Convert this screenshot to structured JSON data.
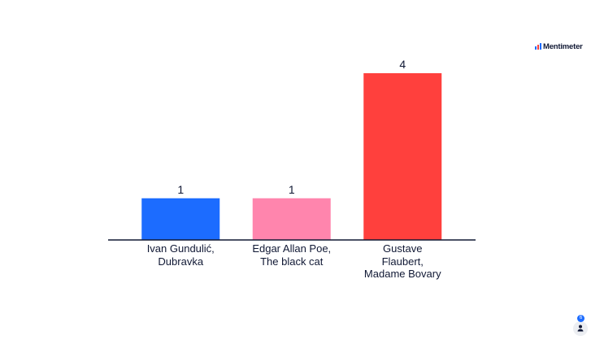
{
  "brand": "Mentimeter",
  "participants": 6,
  "chart_data": {
    "type": "bar",
    "categories": [
      "Ivan Gundulić, Dubravka",
      "Edgar Allan Poe, The black cat",
      "Gustave Flaubert, Madame Bovary"
    ],
    "values": [
      1,
      1,
      4
    ],
    "colors": [
      "#1c6cff",
      "#ff85ad",
      "#ff403d"
    ]
  }
}
